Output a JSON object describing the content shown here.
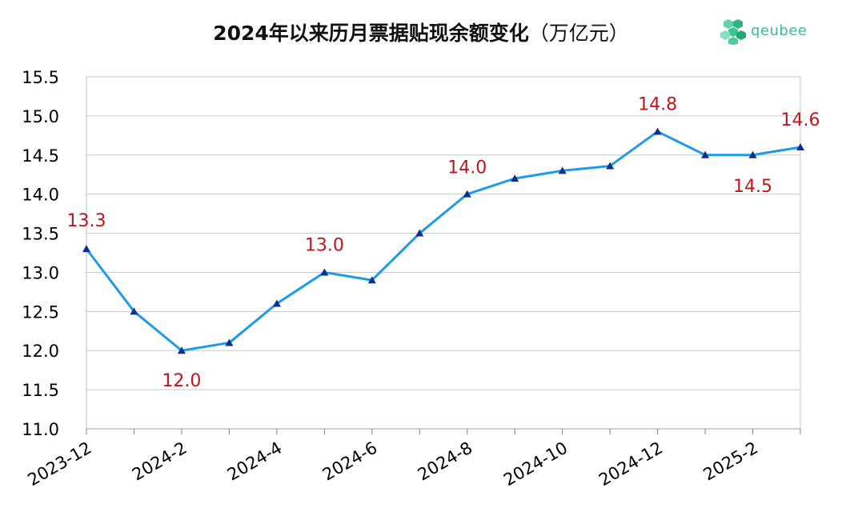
{
  "chart_data": {
    "type": "line",
    "title": "2024年以来历月票据贴现余额变化",
    "title_unit": "（万亿元）",
    "logo_text": "qeubee",
    "x": [
      "2023-12",
      "2024-1",
      "2024-2",
      "2024-3",
      "2024-4",
      "2024-5",
      "2024-6",
      "2024-7",
      "2024-8",
      "2024-9",
      "2024-10",
      "2024-11",
      "2024-12",
      "2025-1",
      "2025-2",
      "2025-3"
    ],
    "x_tick_labels": [
      "2023-12",
      "2024-2",
      "2024-4",
      "2024-6",
      "2024-8",
      "2024-10",
      "2024-12",
      "2025-2"
    ],
    "series": [
      {
        "values": [
          13.3,
          12.5,
          12.0,
          12.1,
          12.6,
          13.0,
          12.9,
          13.5,
          14.0,
          14.2,
          14.3,
          14.36,
          14.8,
          14.5,
          14.5,
          14.6
        ],
        "color": "#1e9be8",
        "marker_color": "#0a2f8c"
      }
    ],
    "data_labels": [
      {
        "x": "2023-12",
        "text": "13.3"
      },
      {
        "x": "2024-2",
        "text": "12.0"
      },
      {
        "x": "2024-5",
        "text": "13.0"
      },
      {
        "x": "2024-8",
        "text": "14.0"
      },
      {
        "x": "2024-12",
        "text": "14.8"
      },
      {
        "x": "2025-2",
        "text": "14.5"
      },
      {
        "x": "2025-3",
        "text": "14.6"
      }
    ],
    "ylim": [
      11.0,
      15.5
    ],
    "y_ticks": [
      "11.0",
      "11.5",
      "12.0",
      "12.5",
      "13.0",
      "13.5",
      "14.0",
      "14.5",
      "15.0",
      "15.5"
    ],
    "grid": true,
    "label_color": "#c0161b"
  }
}
